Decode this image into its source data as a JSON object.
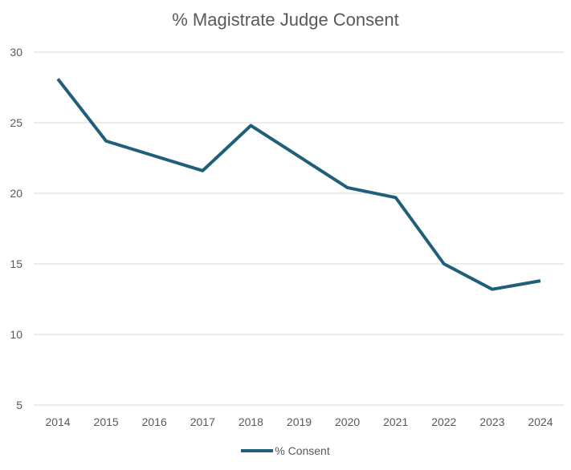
{
  "chart_data": {
    "type": "line",
    "title": "% Magistrate Judge Consent",
    "categories": [
      "2014",
      "2015",
      "2016",
      "2017",
      "2018",
      "2019",
      "2020",
      "2021",
      "2022",
      "2023",
      "2024"
    ],
    "series": [
      {
        "name": "% Consent",
        "values": [
          28.1,
          23.7,
          22.65,
          21.6,
          24.8,
          22.6,
          20.4,
          19.7,
          15.0,
          13.2,
          13.8
        ],
        "color": "#1f5f7a"
      }
    ],
    "yticks": [
      "5",
      "10",
      "15",
      "20",
      "25",
      "30"
    ],
    "ylim": [
      5,
      30
    ],
    "grid": true,
    "legend": "bottom"
  }
}
